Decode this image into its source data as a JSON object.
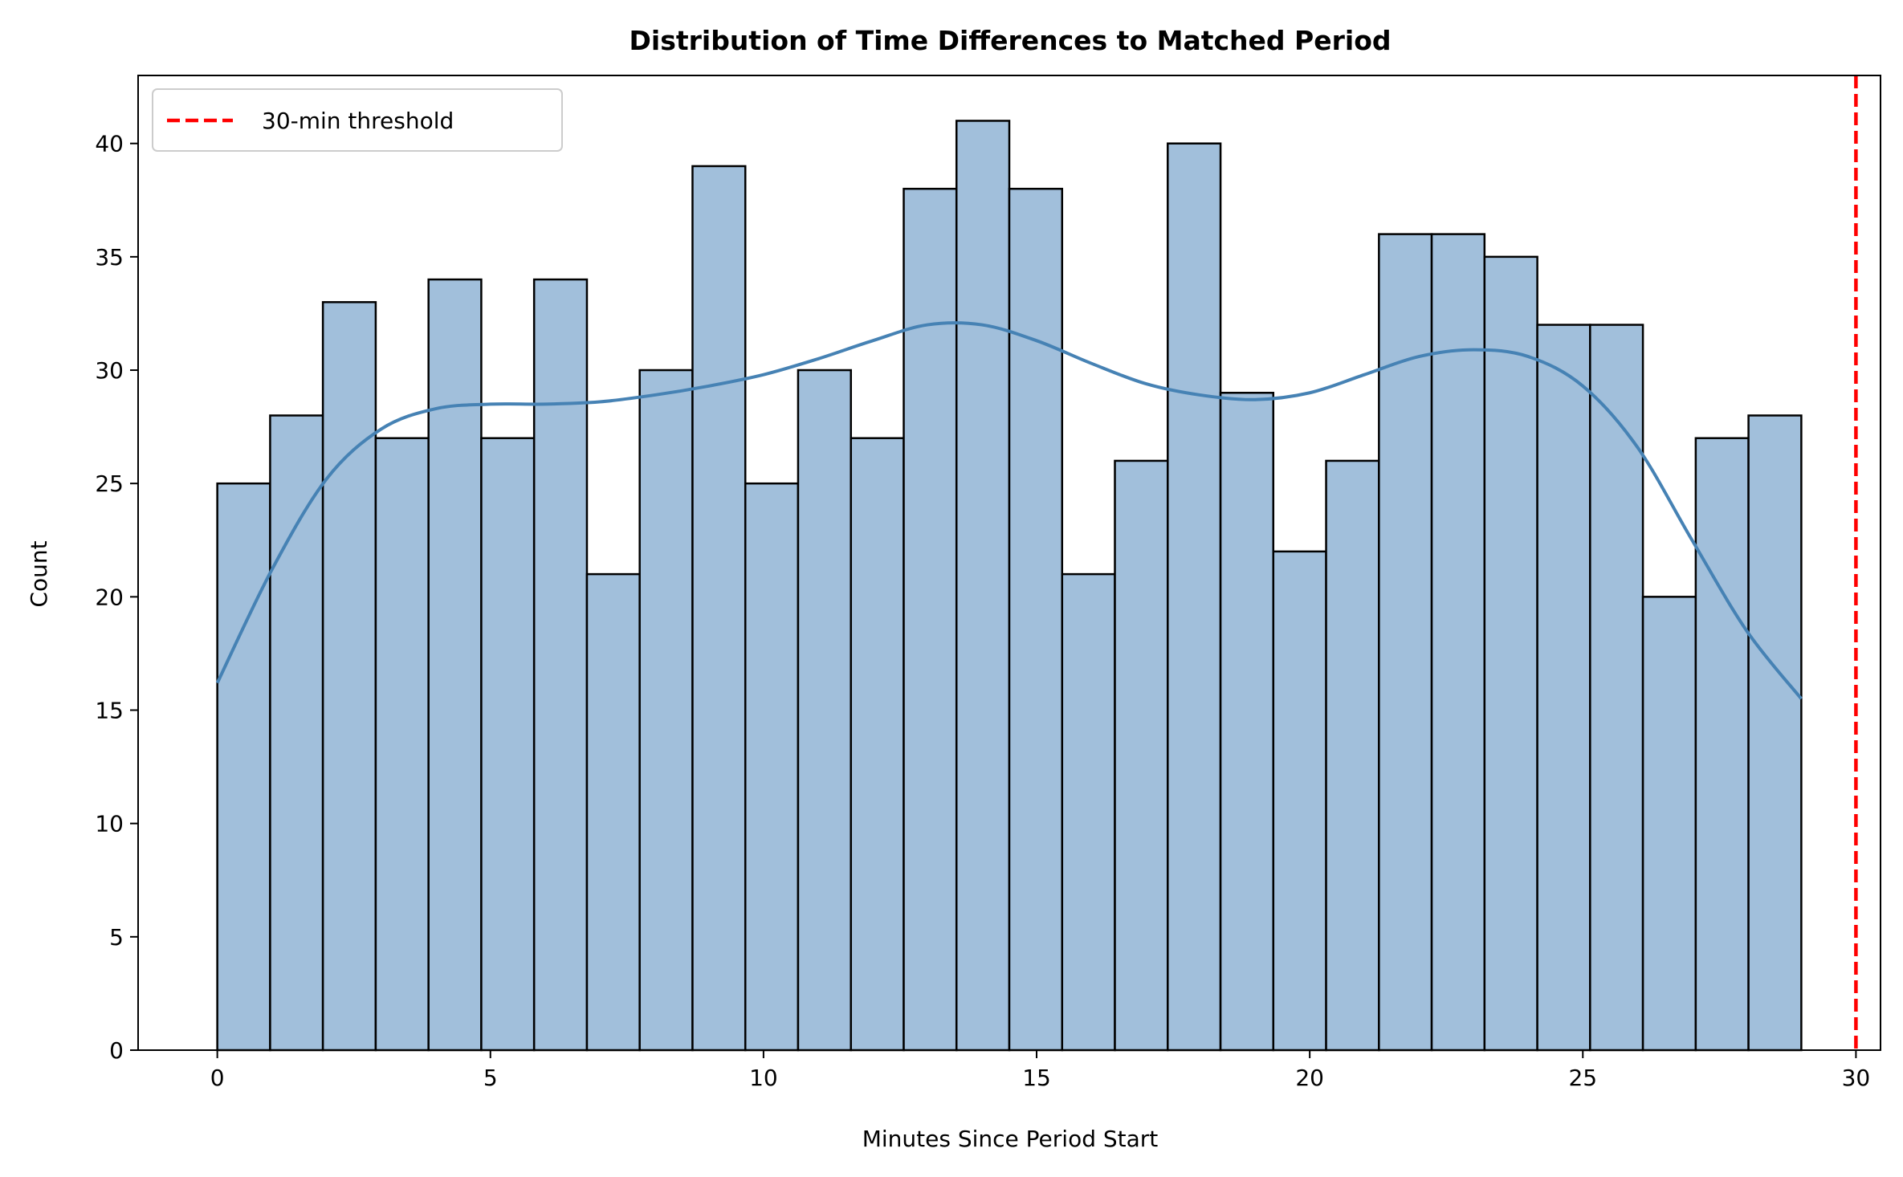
{
  "chart_data": {
    "type": "bar",
    "title": "Distribution of Time Differences to Matched Period",
    "xlabel": "Minutes Since Period Start",
    "ylabel": "Count",
    "xlim": [
      -1.45,
      30.45
    ],
    "ylim": [
      0,
      43
    ],
    "bin_edges": [
      0.0,
      0.967,
      1.933,
      2.9,
      3.867,
      4.833,
      5.8,
      6.767,
      7.733,
      8.7,
      9.667,
      10.633,
      11.6,
      12.567,
      13.533,
      14.5,
      15.467,
      16.433,
      17.4,
      18.367,
      19.333,
      20.3,
      21.267,
      22.233,
      23.2,
      24.167,
      25.133,
      26.1,
      27.067,
      28.033,
      29.0
    ],
    "values": [
      25,
      28,
      33,
      27,
      34,
      27,
      34,
      21,
      30,
      39,
      25,
      30,
      27,
      38,
      41,
      38,
      21,
      26,
      40,
      29,
      22,
      26,
      36,
      36,
      35,
      32,
      32,
      20,
      27,
      28
    ],
    "x_ticks": [
      0,
      5,
      10,
      15,
      20,
      25,
      30
    ],
    "x_tick_labels": [
      "0",
      "5",
      "10",
      "15",
      "20",
      "25",
      "30"
    ],
    "y_ticks": [
      0,
      5,
      10,
      15,
      20,
      25,
      30,
      35,
      40
    ],
    "y_tick_labels": [
      "0",
      "5",
      "10",
      "15",
      "20",
      "25",
      "30",
      "35",
      "40"
    ],
    "kde": {
      "x": [
        0,
        1,
        2,
        3,
        4,
        5,
        6,
        7,
        8,
        9,
        10,
        11,
        12,
        13,
        14,
        15,
        16,
        17,
        18,
        19,
        20,
        21,
        22,
        23,
        24,
        25,
        26,
        27,
        28,
        29
      ],
      "y": [
        16.2,
        21.2,
        25.2,
        27.4,
        28.3,
        28.5,
        28.5,
        28.6,
        28.9,
        29.3,
        29.8,
        30.5,
        31.3,
        32.0,
        32.0,
        31.3,
        30.3,
        29.4,
        28.9,
        28.7,
        29.0,
        29.8,
        30.6,
        30.9,
        30.6,
        29.3,
        26.6,
        22.5,
        18.5,
        15.5
      ]
    },
    "threshold": {
      "x": 30,
      "label": "30-min threshold"
    },
    "legend_position": "top-left",
    "grid": false,
    "colors": {
      "bar_fill": "#a1bfdb",
      "bar_edge": "#000000",
      "kde_line": "#4682b4",
      "threshold_line": "#ff0000"
    }
  }
}
